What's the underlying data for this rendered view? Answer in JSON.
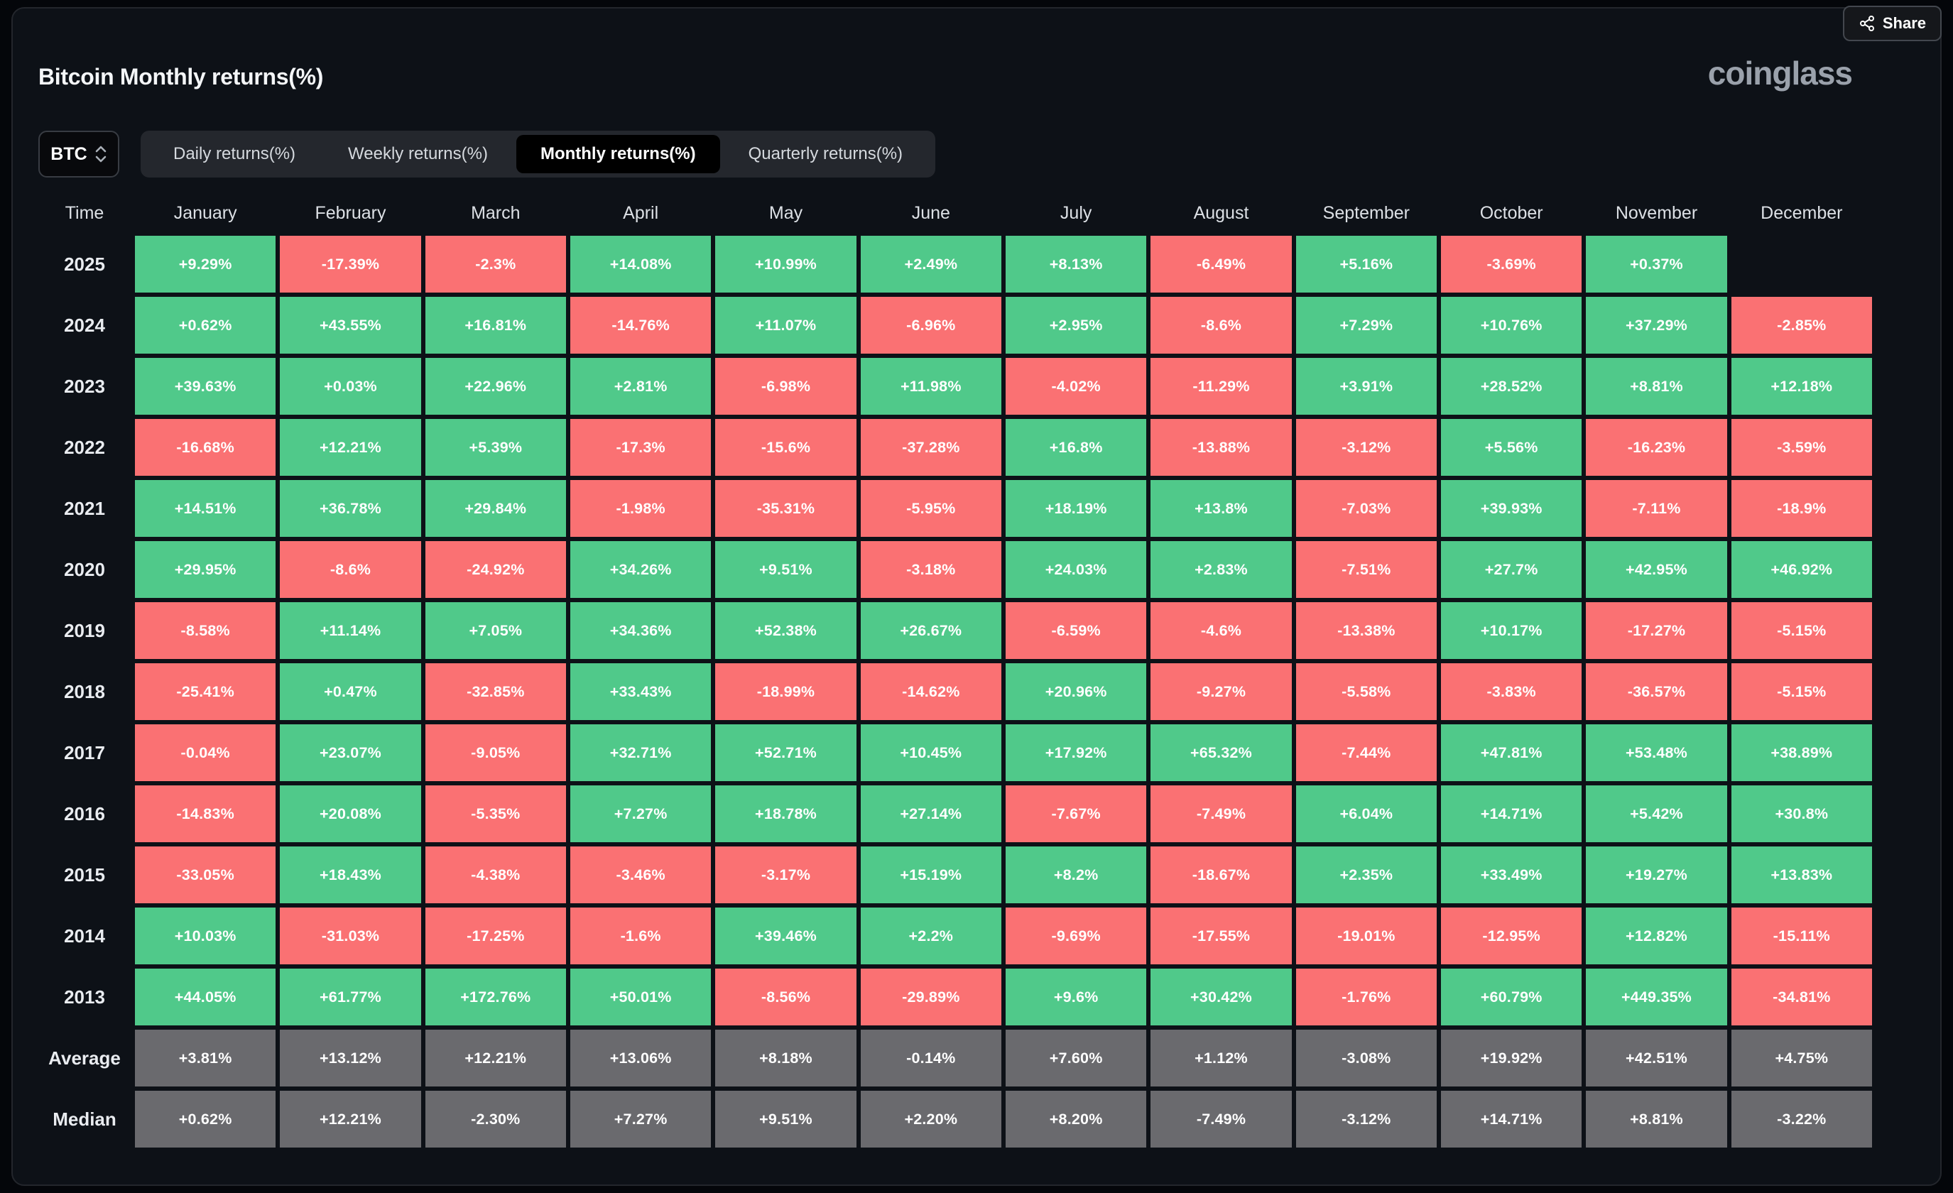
{
  "header": {
    "title": "Bitcoin Monthly returns(%)",
    "share_label": "Share",
    "logo": "coinglass"
  },
  "controls": {
    "symbol_select": {
      "value": "BTC"
    },
    "tabs": {
      "active_index": 2,
      "items": [
        {
          "label": "Daily returns(%)"
        },
        {
          "label": "Weekly returns(%)"
        },
        {
          "label": "Monthly returns(%)"
        },
        {
          "label": "Quarterly returns(%)"
        }
      ]
    }
  },
  "table": {
    "corner_header": "Time",
    "months": [
      "January",
      "February",
      "March",
      "April",
      "May",
      "June",
      "July",
      "August",
      "September",
      "October",
      "November",
      "December"
    ],
    "rows": [
      {
        "label": "2025",
        "type": "year",
        "values": [
          "+9.29%",
          "-17.39%",
          "-2.3%",
          "+14.08%",
          "+10.99%",
          "+2.49%",
          "+8.13%",
          "-6.49%",
          "+5.16%",
          "-3.69%",
          "+0.37%",
          null
        ]
      },
      {
        "label": "2024",
        "type": "year",
        "values": [
          "+0.62%",
          "+43.55%",
          "+16.81%",
          "-14.76%",
          "+11.07%",
          "-6.96%",
          "+2.95%",
          "-8.6%",
          "+7.29%",
          "+10.76%",
          "+37.29%",
          "-2.85%"
        ]
      },
      {
        "label": "2023",
        "type": "year",
        "values": [
          "+39.63%",
          "+0.03%",
          "+22.96%",
          "+2.81%",
          "-6.98%",
          "+11.98%",
          "-4.02%",
          "-11.29%",
          "+3.91%",
          "+28.52%",
          "+8.81%",
          "+12.18%"
        ]
      },
      {
        "label": "2022",
        "type": "year",
        "values": [
          "-16.68%",
          "+12.21%",
          "+5.39%",
          "-17.3%",
          "-15.6%",
          "-37.28%",
          "+16.8%",
          "-13.88%",
          "-3.12%",
          "+5.56%",
          "-16.23%",
          "-3.59%"
        ]
      },
      {
        "label": "2021",
        "type": "year",
        "values": [
          "+14.51%",
          "+36.78%",
          "+29.84%",
          "-1.98%",
          "-35.31%",
          "-5.95%",
          "+18.19%",
          "+13.8%",
          "-7.03%",
          "+39.93%",
          "-7.11%",
          "-18.9%"
        ]
      },
      {
        "label": "2020",
        "type": "year",
        "values": [
          "+29.95%",
          "-8.6%",
          "-24.92%",
          "+34.26%",
          "+9.51%",
          "-3.18%",
          "+24.03%",
          "+2.83%",
          "-7.51%",
          "+27.7%",
          "+42.95%",
          "+46.92%"
        ]
      },
      {
        "label": "2019",
        "type": "year",
        "values": [
          "-8.58%",
          "+11.14%",
          "+7.05%",
          "+34.36%",
          "+52.38%",
          "+26.67%",
          "-6.59%",
          "-4.6%",
          "-13.38%",
          "+10.17%",
          "-17.27%",
          "-5.15%"
        ]
      },
      {
        "label": "2018",
        "type": "year",
        "values": [
          "-25.41%",
          "+0.47%",
          "-32.85%",
          "+33.43%",
          "-18.99%",
          "-14.62%",
          "+20.96%",
          "-9.27%",
          "-5.58%",
          "-3.83%",
          "-36.57%",
          "-5.15%"
        ]
      },
      {
        "label": "2017",
        "type": "year",
        "values": [
          "-0.04%",
          "+23.07%",
          "-9.05%",
          "+32.71%",
          "+52.71%",
          "+10.45%",
          "+17.92%",
          "+65.32%",
          "-7.44%",
          "+47.81%",
          "+53.48%",
          "+38.89%"
        ]
      },
      {
        "label": "2016",
        "type": "year",
        "values": [
          "-14.83%",
          "+20.08%",
          "-5.35%",
          "+7.27%",
          "+18.78%",
          "+27.14%",
          "-7.67%",
          "-7.49%",
          "+6.04%",
          "+14.71%",
          "+5.42%",
          "+30.8%"
        ]
      },
      {
        "label": "2015",
        "type": "year",
        "values": [
          "-33.05%",
          "+18.43%",
          "-4.38%",
          "-3.46%",
          "-3.17%",
          "+15.19%",
          "+8.2%",
          "-18.67%",
          "+2.35%",
          "+33.49%",
          "+19.27%",
          "+13.83%"
        ]
      },
      {
        "label": "2014",
        "type": "year",
        "values": [
          "+10.03%",
          "-31.03%",
          "-17.25%",
          "-1.6%",
          "+39.46%",
          "+2.2%",
          "-9.69%",
          "-17.55%",
          "-19.01%",
          "-12.95%",
          "+12.82%",
          "-15.11%"
        ]
      },
      {
        "label": "2013",
        "type": "year",
        "values": [
          "+44.05%",
          "+61.77%",
          "+172.76%",
          "+50.01%",
          "-8.56%",
          "-29.89%",
          "+9.6%",
          "+30.42%",
          "-1.76%",
          "+60.79%",
          "+449.35%",
          "-34.81%"
        ]
      },
      {
        "label": "Average",
        "type": "summary",
        "values": [
          "+3.81%",
          "+13.12%",
          "+12.21%",
          "+13.06%",
          "+8.18%",
          "-0.14%",
          "+7.60%",
          "+1.12%",
          "-3.08%",
          "+19.92%",
          "+42.51%",
          "+4.75%"
        ]
      },
      {
        "label": "Median",
        "type": "summary",
        "values": [
          "+0.62%",
          "+12.21%",
          "-2.30%",
          "+7.27%",
          "+9.51%",
          "+2.20%",
          "+8.20%",
          "-7.49%",
          "-3.12%",
          "+14.71%",
          "+8.81%",
          "-3.22%"
        ]
      }
    ]
  },
  "colors": {
    "positive": "#50c98a",
    "negative": "#fa7173",
    "summary": "#6a6a6e",
    "card_bg": "#0d1117",
    "active_tab_bg": "#000000"
  },
  "chart_data": {
    "type": "heatmap",
    "title": "Bitcoin Monthly returns(%)",
    "x_categories": [
      "January",
      "February",
      "March",
      "April",
      "May",
      "June",
      "July",
      "August",
      "September",
      "October",
      "November",
      "December"
    ],
    "y_categories": [
      "2025",
      "2024",
      "2023",
      "2022",
      "2021",
      "2020",
      "2019",
      "2018",
      "2017",
      "2016",
      "2015",
      "2014",
      "2013",
      "Average",
      "Median"
    ],
    "unit": "%",
    "series": [
      {
        "name": "2025",
        "values": [
          9.29,
          -17.39,
          -2.3,
          14.08,
          10.99,
          2.49,
          8.13,
          -6.49,
          5.16,
          -3.69,
          0.37,
          null
        ]
      },
      {
        "name": "2024",
        "values": [
          0.62,
          43.55,
          16.81,
          -14.76,
          11.07,
          -6.96,
          2.95,
          -8.6,
          7.29,
          10.76,
          37.29,
          -2.85
        ]
      },
      {
        "name": "2023",
        "values": [
          39.63,
          0.03,
          22.96,
          2.81,
          -6.98,
          11.98,
          -4.02,
          -11.29,
          3.91,
          28.52,
          8.81,
          12.18
        ]
      },
      {
        "name": "2022",
        "values": [
          -16.68,
          12.21,
          5.39,
          -17.3,
          -15.6,
          -37.28,
          16.8,
          -13.88,
          -3.12,
          5.56,
          -16.23,
          -3.59
        ]
      },
      {
        "name": "2021",
        "values": [
          14.51,
          36.78,
          29.84,
          -1.98,
          -35.31,
          -5.95,
          18.19,
          13.8,
          -7.03,
          39.93,
          -7.11,
          -18.9
        ]
      },
      {
        "name": "2020",
        "values": [
          29.95,
          -8.6,
          -24.92,
          34.26,
          9.51,
          -3.18,
          24.03,
          2.83,
          -7.51,
          27.7,
          42.95,
          46.92
        ]
      },
      {
        "name": "2019",
        "values": [
          -8.58,
          11.14,
          7.05,
          34.36,
          52.38,
          26.67,
          -6.59,
          -4.6,
          -13.38,
          10.17,
          -17.27,
          -5.15
        ]
      },
      {
        "name": "2018",
        "values": [
          -25.41,
          0.47,
          -32.85,
          33.43,
          -18.99,
          -14.62,
          20.96,
          -9.27,
          -5.58,
          -3.83,
          -36.57,
          -5.15
        ]
      },
      {
        "name": "2017",
        "values": [
          -0.04,
          23.07,
          -9.05,
          32.71,
          52.71,
          10.45,
          17.92,
          65.32,
          -7.44,
          47.81,
          53.48,
          38.89
        ]
      },
      {
        "name": "2016",
        "values": [
          -14.83,
          20.08,
          -5.35,
          7.27,
          18.78,
          27.14,
          -7.67,
          -7.49,
          6.04,
          14.71,
          5.42,
          30.8
        ]
      },
      {
        "name": "2015",
        "values": [
          -33.05,
          18.43,
          -4.38,
          -3.46,
          -3.17,
          15.19,
          8.2,
          -18.67,
          2.35,
          33.49,
          19.27,
          13.83
        ]
      },
      {
        "name": "2014",
        "values": [
          10.03,
          -31.03,
          -17.25,
          -1.6,
          39.46,
          2.2,
          -9.69,
          -17.55,
          -19.01,
          -12.95,
          12.82,
          -15.11
        ]
      },
      {
        "name": "2013",
        "values": [
          44.05,
          61.77,
          172.76,
          50.01,
          -8.56,
          -29.89,
          9.6,
          30.42,
          -1.76,
          60.79,
          449.35,
          -34.81
        ]
      },
      {
        "name": "Average",
        "values": [
          3.81,
          13.12,
          12.21,
          13.06,
          8.18,
          -0.14,
          7.6,
          1.12,
          -3.08,
          19.92,
          42.51,
          4.75
        ]
      },
      {
        "name": "Median",
        "values": [
          0.62,
          12.21,
          -2.3,
          7.27,
          9.51,
          2.2,
          8.2,
          -7.49,
          -3.12,
          14.71,
          8.81,
          -3.22
        ]
      }
    ],
    "legend": "off",
    "color_coding": "green = positive month, red = negative month, gray = summary rows (Average/Median)"
  }
}
